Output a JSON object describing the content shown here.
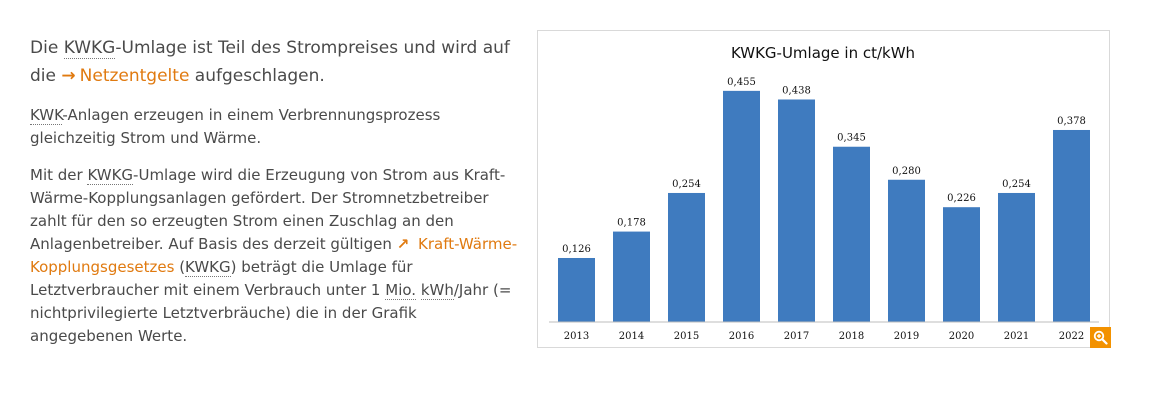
{
  "text": {
    "intro": {
      "pre": "Die ",
      "abbr": "KWKG",
      "mid": "-Umlage ist Teil des Strompreises und wird auf die",
      "arrow": "→",
      "link": "Netzentgelte",
      "post": " aufgeschlagen."
    },
    "p2": {
      "abbr": "KWK",
      "rest": "-Anlagen erzeugen in einem Verbrennungsprozess gleichzeitig Strom und Wärme."
    },
    "p3": {
      "pre": "Mit der ",
      "abbr1": "KWKG",
      "t1": "-Umlage wird die Erzeugung von Strom aus Kraft-Wärme-Kopplungsanlagen gefördert. Der Stromnetzbetreiber zahlt für den so erzeugten Strom einen Zuschlag an den Anlagenbetreiber. Auf Basis des derzeit gültigen ",
      "arrow": "↗",
      "link": "Kraft-Wärme-Kopplungsgesetzes",
      "t2": " (",
      "abbr2": "KWKG",
      "t3": ") beträgt die Umlage für Letztverbraucher mit einem Verbrauch unter 1 ",
      "abbr3": "Mio.",
      "t4": " ",
      "abbr4": "kWh",
      "t5": "/Jahr (= nichtprivilegierte Letztverbräuche) die in der Grafik angegebenen Werte."
    }
  },
  "colors": {
    "bar": "#3f7bbf",
    "accent": "#e07a10",
    "zoom": "#f39200"
  },
  "zoom_icon": "zoom-in-icon",
  "chart_data": {
    "type": "bar",
    "title": "KWKG-Umlage in ct/kWh",
    "categories": [
      "2013",
      "2014",
      "2015",
      "2016",
      "2017",
      "2018",
      "2019",
      "2020",
      "2021",
      "2022"
    ],
    "values": [
      0.126,
      0.178,
      0.254,
      0.455,
      0.438,
      0.345,
      0.28,
      0.226,
      0.254,
      0.378
    ],
    "value_labels": [
      "0,126",
      "0,178",
      "0,254",
      "0,455",
      "0,438",
      "0,345",
      "0,280",
      "0,226",
      "0,254",
      "0,378"
    ],
    "xlabel": "",
    "ylabel": "",
    "ylim": [
      0,
      0.5
    ],
    "grid": false,
    "legend": "none"
  }
}
